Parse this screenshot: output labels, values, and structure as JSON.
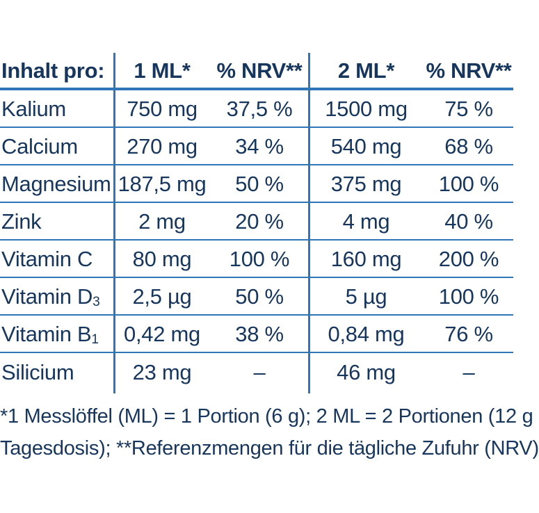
{
  "table": {
    "header": {
      "label": "Inhalt pro:",
      "col1": "1 ML*",
      "col2": "% NRV**",
      "col3": "2 ML*",
      "col4": "% NRV**"
    },
    "rows": [
      {
        "label": "Kalium",
        "v1": "750 mg",
        "p1": "37,5 %",
        "v2": "1500 mg",
        "p2": "75 %"
      },
      {
        "label": "Calcium",
        "v1": "270 mg",
        "p1": "34 %",
        "v2": "540 mg",
        "p2": "68 %"
      },
      {
        "label": "Magnesium",
        "v1": "187,5 mg",
        "p1": "50 %",
        "v2": "375 mg",
        "p2": "100 %"
      },
      {
        "label": "Zink",
        "v1": "2 mg",
        "p1": "20 %",
        "v2": "4 mg",
        "p2": "40 %"
      },
      {
        "label": "Vitamin C",
        "v1": "80 mg",
        "p1": "100 %",
        "v2": "160 mg",
        "p2": "200 %"
      },
      {
        "label": "Vitamin D",
        "sub": "3",
        "v1": "2,5 µg",
        "p1": "50 %",
        "v2": "5 µg",
        "p2": "100 %"
      },
      {
        "label": "Vitamin B",
        "sub": "1",
        "v1": "0,42 mg",
        "p1": "38 %",
        "v2": "0,84 mg",
        "p2": "76 %"
      },
      {
        "label": "Silicium",
        "v1": "23 mg",
        "p1": "–",
        "v2": "46 mg",
        "p2": "–"
      }
    ]
  },
  "footnotes": {
    "line1": "*1 Messlöffel (ML) = 1 Portion (6 g); 2 ML = 2 Portionen (12 g",
    "line2": "Tagesdosis); **Referenzmengen für die tägliche Zufuhr (NRV)"
  },
  "colors": {
    "text": "#17365d",
    "line": "#2f76b8"
  }
}
